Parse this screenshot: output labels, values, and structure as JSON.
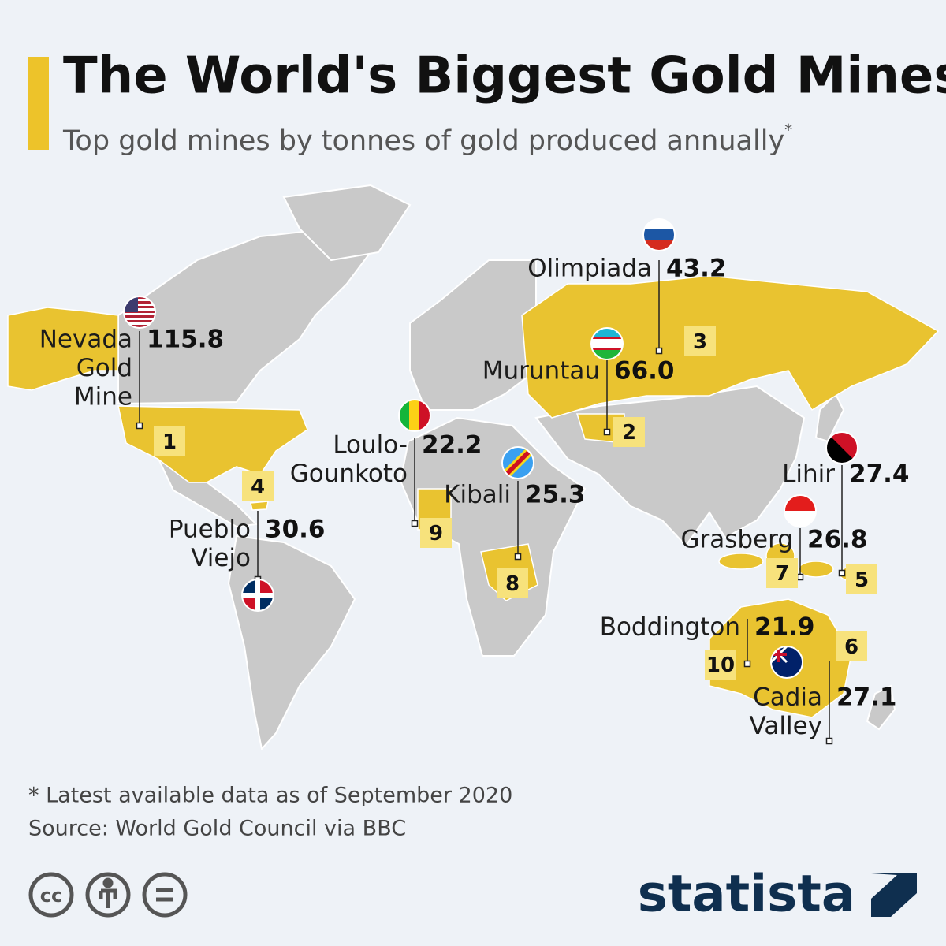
{
  "header": {
    "title": "The World's Biggest Gold Mines",
    "subtitle": "Top gold mines by tonnes of gold produced annually",
    "subtitle_mark": "*"
  },
  "mines": [
    {
      "rank": 1,
      "name": [
        "Nevada",
        "Gold",
        "Mine"
      ],
      "value": "115.8"
    },
    {
      "rank": 2,
      "name": [
        "Muruntau"
      ],
      "value": "66.0"
    },
    {
      "rank": 3,
      "name": [
        "Olimpiada"
      ],
      "value": "43.2"
    },
    {
      "rank": 4,
      "name": [
        "Pueblo",
        "Viejo"
      ],
      "value": "30.6"
    },
    {
      "rank": 5,
      "name": [
        "Lihir"
      ],
      "value": "27.4"
    },
    {
      "rank": 6,
      "name": [
        "Cadia",
        "Valley"
      ],
      "value": "27.1"
    },
    {
      "rank": 7,
      "name": [
        "Grasberg"
      ],
      "value": "26.8"
    },
    {
      "rank": 8,
      "name": [
        "Kibali"
      ],
      "value": "25.3"
    },
    {
      "rank": 9,
      "name": [
        "Loulo-",
        "Gounkoto"
      ],
      "value": "22.2"
    },
    {
      "rank": 10,
      "name": [
        "Boddington"
      ],
      "value": "21.9"
    }
  ],
  "footer": {
    "note": "* Latest available data as of September 2020",
    "source": "Source: World Gold Council via BBC",
    "license": "cc",
    "brand": "statista"
  }
}
